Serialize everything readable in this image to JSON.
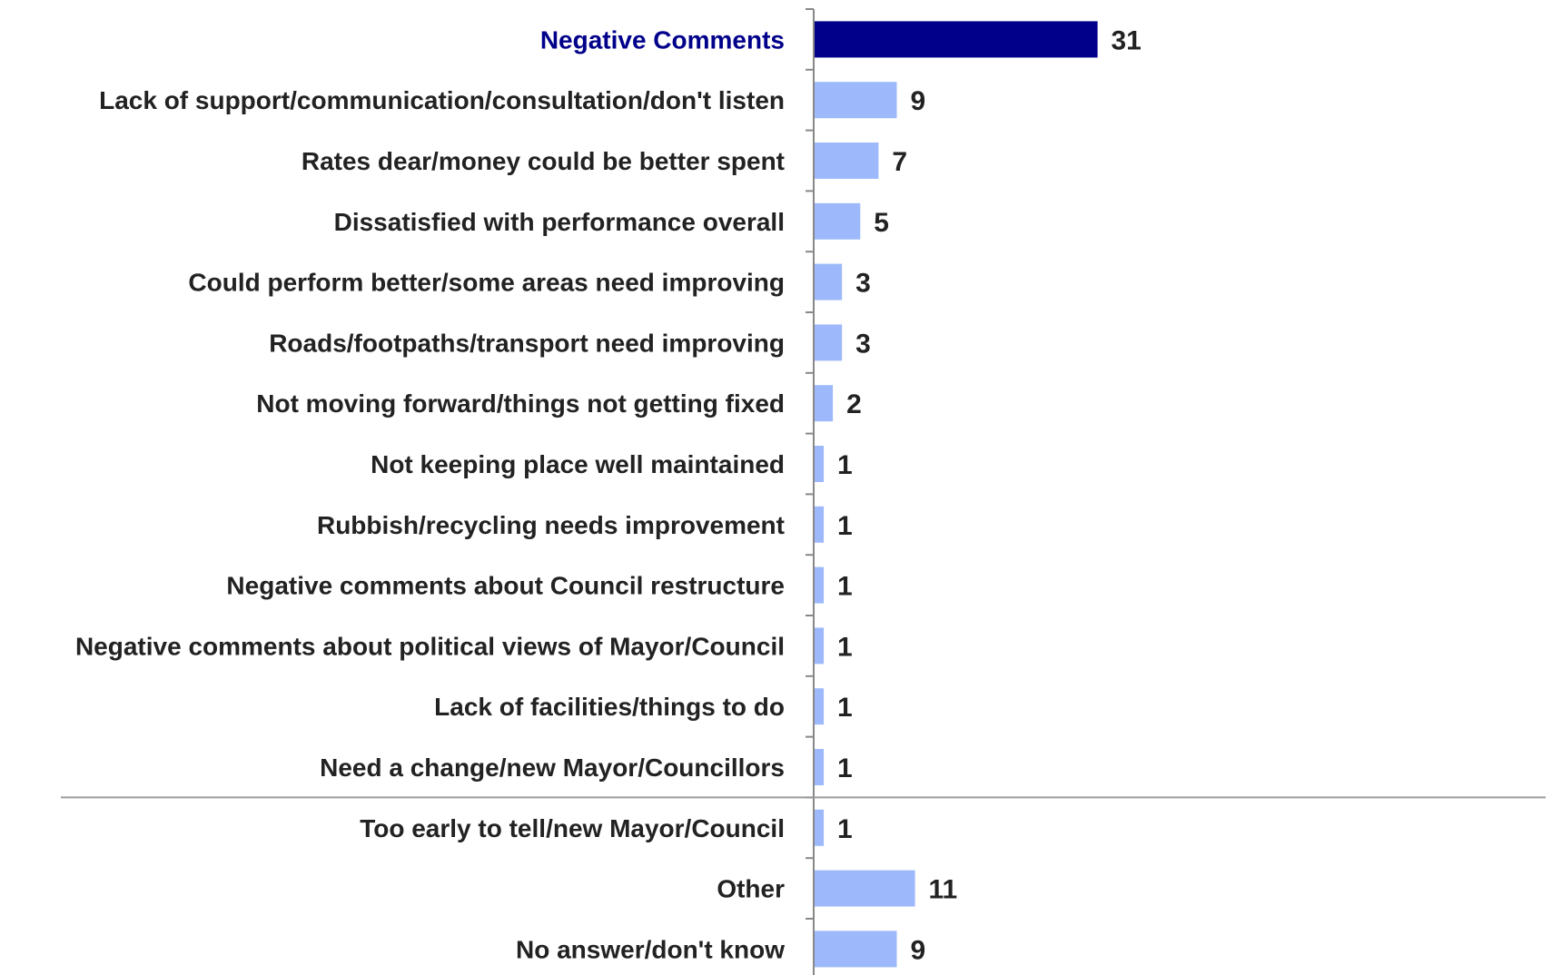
{
  "chart_data": {
    "type": "bar",
    "orientation": "horizontal",
    "categories": [
      "Negative Comments",
      "Lack of support/communication/consultation/don't listen",
      "Rates dear/money could be better spent",
      "Dissatisfied with performance overall",
      "Could perform better/some areas need improving",
      "Roads/footpaths/transport need improving",
      "Not moving forward/things not getting fixed",
      "Not keeping place well maintained",
      "Rubbish/recycling needs improvement",
      "Negative comments about Council restructure",
      "Negative comments about political views of Mayor/Council",
      "Lack of facilities/things to do",
      "Need a change/new Mayor/Councillors",
      "Too early to tell/new Mayor/Council",
      "Other",
      "No answer/don't know"
    ],
    "values": [
      31,
      9,
      7,
      5,
      3,
      3,
      2,
      1,
      1,
      1,
      1,
      1,
      1,
      1,
      11,
      9
    ],
    "value_labels": [
      "31",
      "9",
      "7",
      "5",
      "3",
      "3",
      "2",
      "1",
      "1",
      "1",
      "1",
      "1",
      "1",
      "1",
      "11",
      "9"
    ],
    "highlight_index": 0,
    "separator_after_index": 12,
    "xlim": [
      0,
      80
    ],
    "title": "",
    "xlabel": "",
    "ylabel": "",
    "grid": false,
    "legend": "none",
    "colors": {
      "highlight_bar": "#00008b",
      "bar": "#9db9fb",
      "highlight_label": "#00008b",
      "label": "#222222",
      "axis": "#888888",
      "separator": "#9a9a9a"
    }
  }
}
